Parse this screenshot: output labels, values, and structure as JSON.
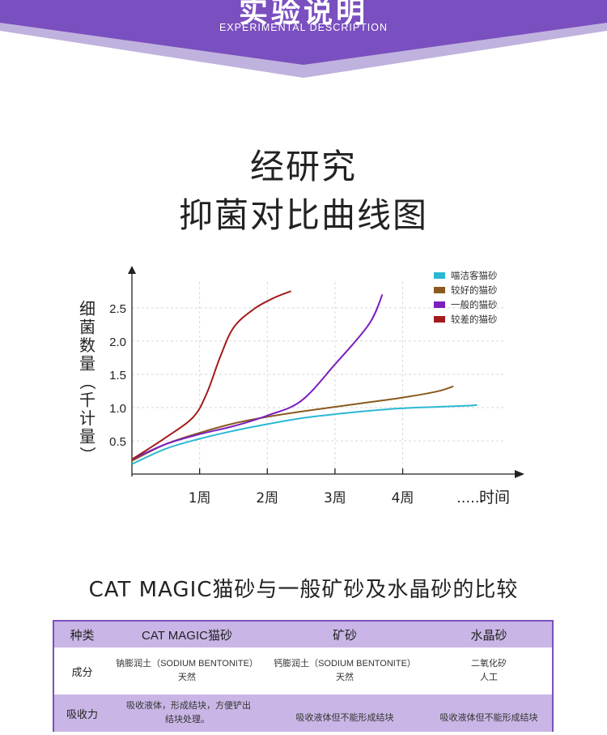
{
  "banner": {
    "title": "实验说明",
    "subtitle": "EXPERIMENTAL DESCRIPTION",
    "color": "#7a4fbf"
  },
  "heading": {
    "line1": "经研究",
    "line2": "抑菌对比曲线图"
  },
  "chart_data": {
    "type": "line",
    "ylabel": "细菌数量（千计量）",
    "xlabel": "时间",
    "categories": [
      "1周",
      "2周",
      "3周",
      "4周",
      "……"
    ],
    "yticks": [
      0.5,
      1.0,
      1.5,
      2.0,
      2.5
    ],
    "ytick_labels": [
      "0.5",
      "1.0",
      "1.5",
      "2.0",
      "2.5"
    ],
    "ylim": [
      0,
      2.9
    ],
    "xlim": [
      0,
      5.5
    ],
    "grid": true,
    "legend_position": "top-right",
    "series": [
      {
        "name": "喵洁客猫砂",
        "color": "#2bb8d4",
        "x": [
          0,
          0.5,
          1,
          1.5,
          2,
          2.5,
          3,
          3.5,
          4,
          4.5,
          5,
          5.1
        ],
        "values": [
          0.15,
          0.38,
          0.53,
          0.65,
          0.75,
          0.84,
          0.9,
          0.95,
          0.99,
          1.01,
          1.03,
          1.04
        ]
      },
      {
        "name": "较好的猫砂",
        "color": "#8a5a1e",
        "x": [
          0,
          0.5,
          1,
          1.5,
          2,
          2.5,
          3,
          3.5,
          4,
          4.5,
          4.75
        ],
        "values": [
          0.2,
          0.45,
          0.62,
          0.76,
          0.86,
          0.94,
          1.01,
          1.08,
          1.15,
          1.24,
          1.32
        ]
      },
      {
        "name": "一般的猫砂",
        "color": "#7b1fbf",
        "x": [
          0,
          0.5,
          1,
          1.5,
          2,
          2.5,
          3,
          3.5,
          3.7
        ],
        "values": [
          0.22,
          0.45,
          0.6,
          0.72,
          0.88,
          1.1,
          1.65,
          2.25,
          2.7
        ]
      },
      {
        "name": "较差的猫砂",
        "color": "#a31b1b",
        "x": [
          0,
          0.5,
          0.9,
          1.1,
          1.3,
          1.5,
          1.8,
          2.1,
          2.35
        ],
        "values": [
          0.22,
          0.55,
          0.85,
          1.2,
          1.75,
          2.2,
          2.48,
          2.65,
          2.75
        ]
      }
    ]
  },
  "comparison": {
    "title": "CAT MAGIC猫砂与一般矿砂及水晶砂的比较",
    "header_color": "#c9b6e6",
    "columns": [
      "种类",
      "CAT MAGIC猫砂",
      "矿砂",
      "水晶砂"
    ],
    "rows": [
      {
        "label": "成分",
        "cells": [
          [
            "钠膨润土（SODIUM BENTONITE）",
            "天然"
          ],
          [
            "钙膨润土（SODIUM BENTONITE）",
            "天然"
          ],
          [
            "二氧化矽",
            "人工"
          ]
        ]
      },
      {
        "label": "吸收力",
        "cells": [
          [
            "吸收液体，形成结块，方便铲出",
            "结块处理。"
          ],
          [
            "吸收液体但不能形成结块"
          ],
          [
            "吸收液体但不能形成结块"
          ]
        ]
      }
    ]
  }
}
